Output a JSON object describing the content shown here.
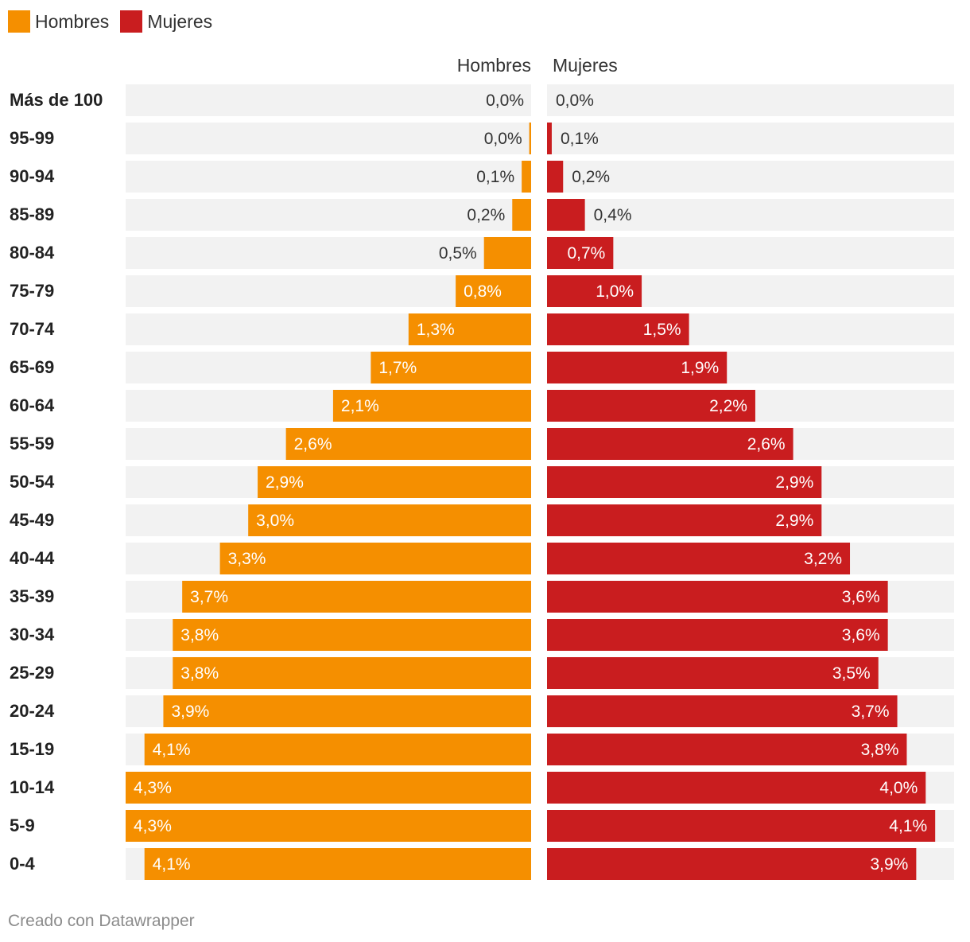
{
  "chart_data": {
    "type": "bar",
    "layout": "population-pyramid",
    "categories": [
      "Más de 100",
      "95-99",
      "90-94",
      "85-89",
      "80-84",
      "75-79",
      "70-74",
      "65-69",
      "60-64",
      "55-59",
      "50-54",
      "45-49",
      "40-44",
      "35-39",
      "30-34",
      "25-29",
      "20-24",
      "15-19",
      "10-14",
      "5-9",
      "0-4"
    ],
    "series": [
      {
        "name": "Hombres",
        "color": "#f58f00",
        "values": [
          0.0,
          0.02,
          0.1,
          0.2,
          0.5,
          0.8,
          1.3,
          1.7,
          2.1,
          2.6,
          2.9,
          3.0,
          3.3,
          3.7,
          3.8,
          3.8,
          3.9,
          4.1,
          4.3,
          4.3,
          4.1
        ],
        "labels": [
          "0,0%",
          "0,0%",
          "0,1%",
          "0,2%",
          "0,5%",
          "0,8%",
          "1,3%",
          "1,7%",
          "2,1%",
          "2,6%",
          "2,9%",
          "3,0%",
          "3,3%",
          "3,7%",
          "3,8%",
          "3,8%",
          "3,9%",
          "4,1%",
          "4,3%",
          "4,3%",
          "4,1%"
        ]
      },
      {
        "name": "Mujeres",
        "color": "#c91d1f",
        "values": [
          0.0,
          0.05,
          0.17,
          0.4,
          0.7,
          1.0,
          1.5,
          1.9,
          2.2,
          2.6,
          2.9,
          2.9,
          3.2,
          3.6,
          3.6,
          3.5,
          3.7,
          3.8,
          4.0,
          4.1,
          3.9
        ],
        "labels": [
          "0,0%",
          "0,1%",
          "0,2%",
          "0,4%",
          "0,7%",
          "1,0%",
          "1,5%",
          "1,9%",
          "2,2%",
          "2,6%",
          "2,9%",
          "2,9%",
          "3,2%",
          "3,6%",
          "3,6%",
          "3,5%",
          "3,7%",
          "3,8%",
          "4,0%",
          "4,1%",
          "3,9%"
        ]
      }
    ],
    "column_headers": [
      "Hombres",
      "Mujeres"
    ],
    "xlim": [
      0,
      4.3
    ],
    "legend": "top-left",
    "grid": false
  },
  "legend": [
    {
      "label": "Hombres",
      "color": "#f58f00"
    },
    {
      "label": "Mujeres",
      "color": "#c91d1f"
    }
  ],
  "footer": "Creado con Datawrapper"
}
